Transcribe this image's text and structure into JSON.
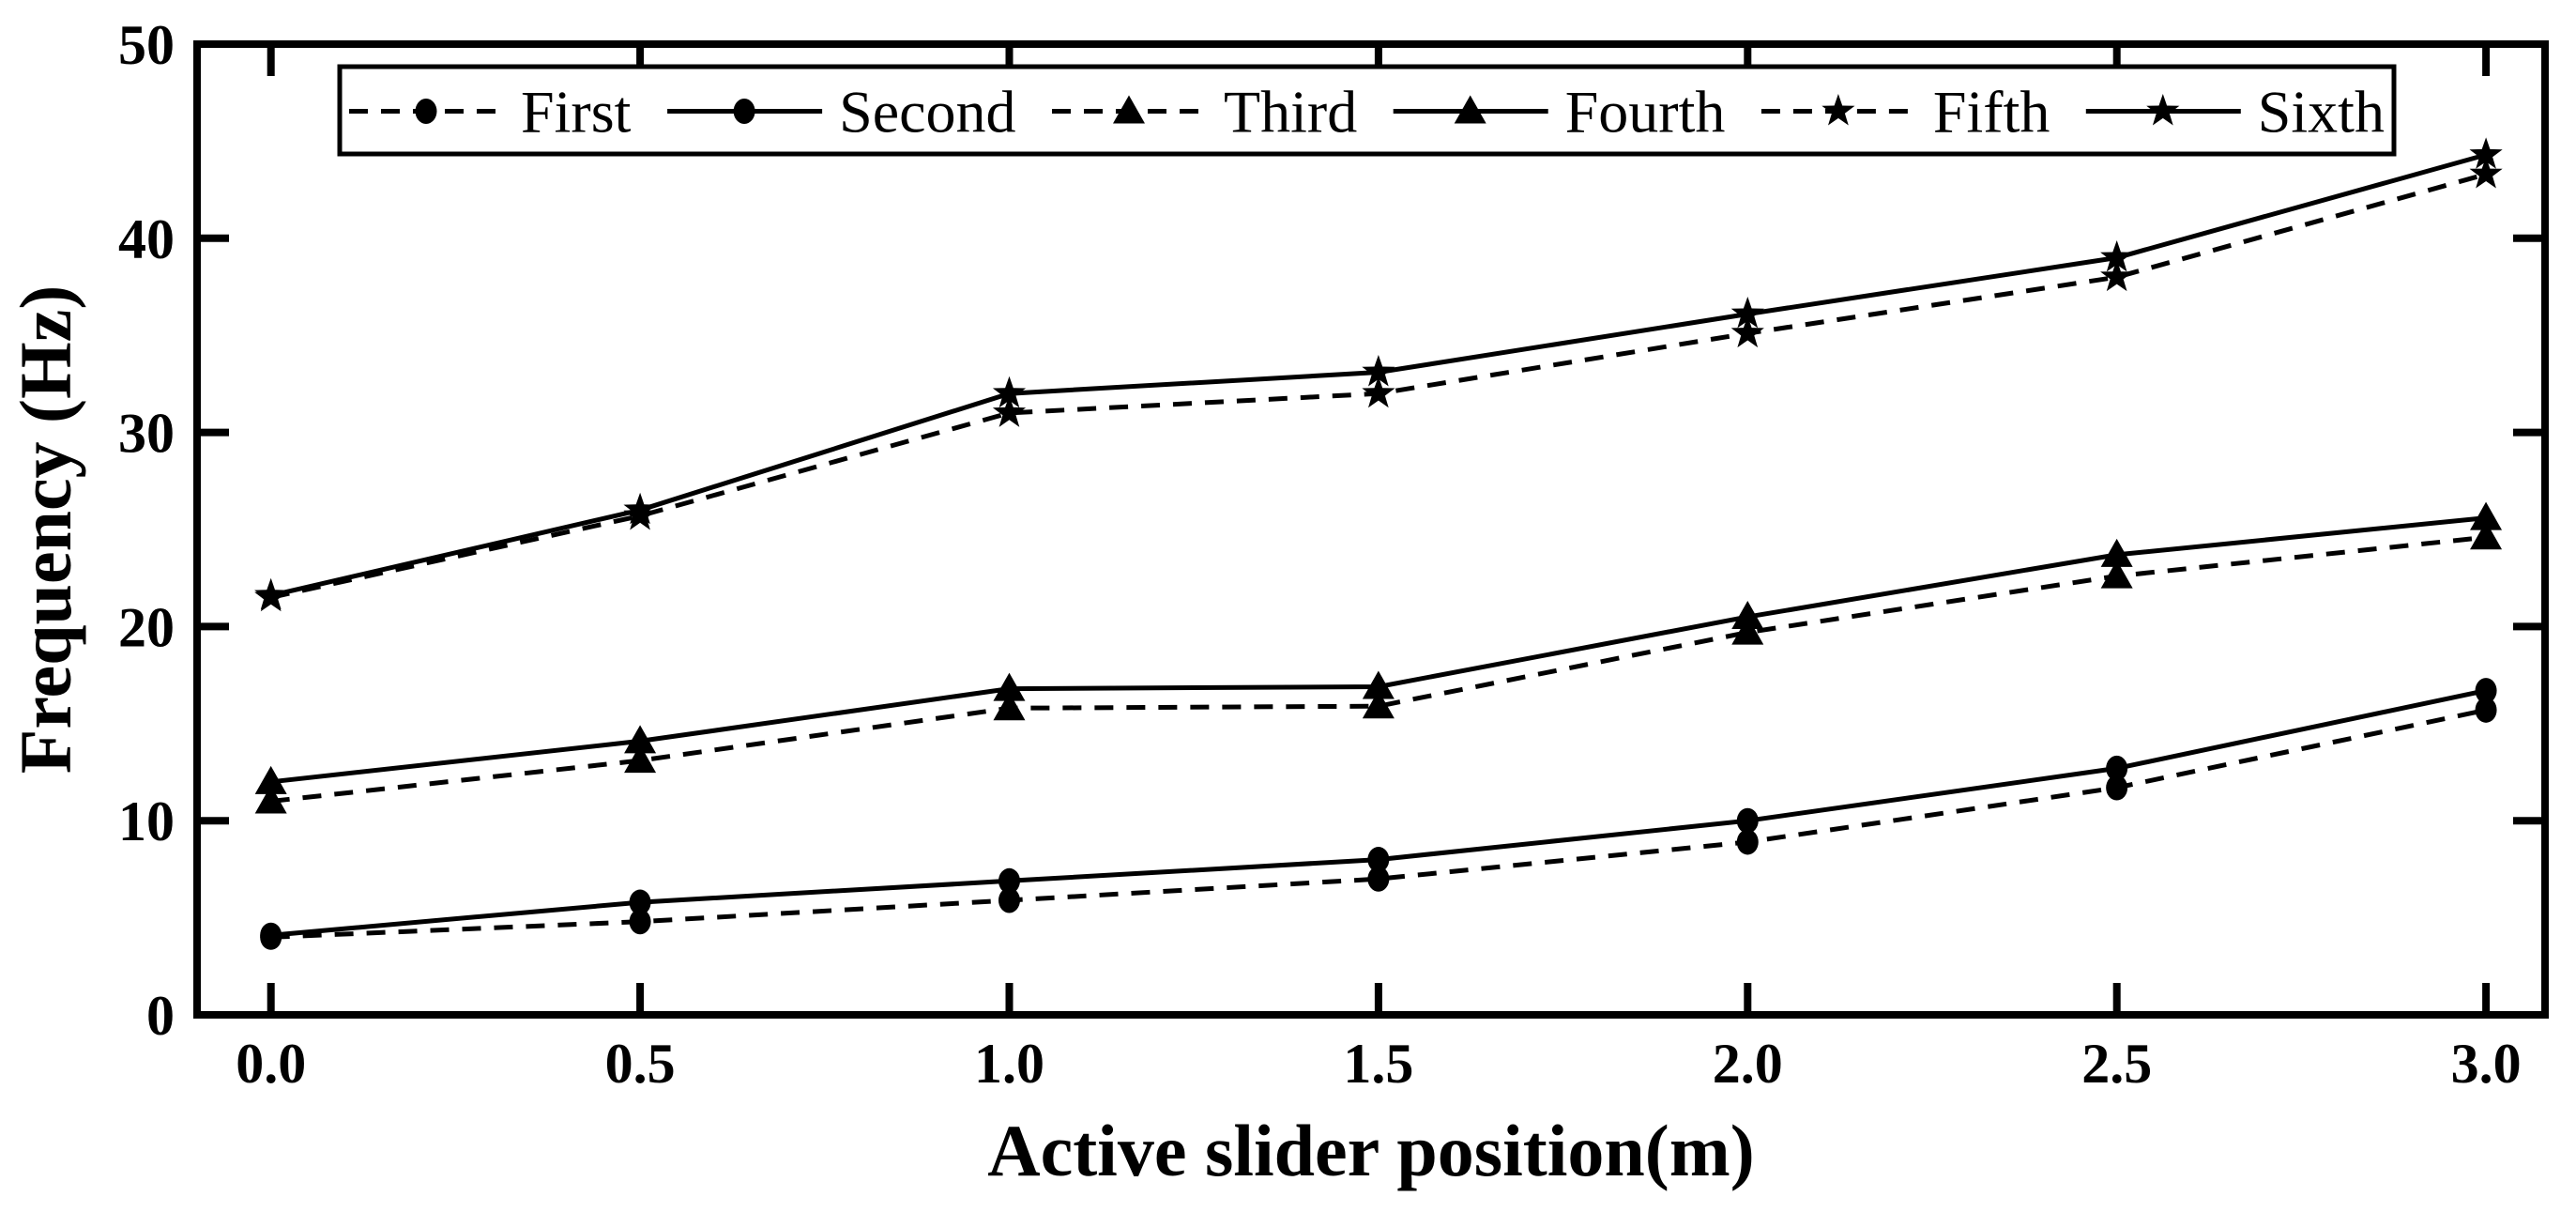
{
  "figure": {
    "background": "#ffffff",
    "foreground": "#000000"
  },
  "chart_data": {
    "type": "line",
    "title": "",
    "xlabel": "Active slider position(m)",
    "ylabel": "Frequency (Hz)",
    "x": [
      0.0,
      0.5,
      1.0,
      1.5,
      2.0,
      2.5,
      3.0
    ],
    "x_tick_labels": [
      "0.0",
      "0.5",
      "1.0",
      "1.5",
      "2.0",
      "2.5",
      "3.0"
    ],
    "y_ticks": [
      0,
      10,
      20,
      30,
      40,
      50
    ],
    "xlim": [
      -0.1,
      3.08
    ],
    "ylim": [
      0,
      50
    ],
    "grid": false,
    "legend": {
      "position": "top-center-inside",
      "border": true
    },
    "series": [
      {
        "name": "First",
        "marker": "circle",
        "line_style": "dashed",
        "color": "#000000",
        "values": [
          4.0,
          4.8,
          5.9,
          7.0,
          8.9,
          11.7,
          15.7
        ]
      },
      {
        "name": "Second",
        "marker": "circle",
        "line_style": "solid",
        "color": "#000000",
        "values": [
          4.1,
          5.8,
          6.9,
          8.0,
          10.0,
          12.7,
          16.7
        ]
      },
      {
        "name": "Third",
        "marker": "triangle",
        "line_style": "dashed",
        "color": "#000000",
        "values": [
          11.0,
          13.1,
          15.8,
          15.9,
          19.7,
          22.6,
          24.6
        ]
      },
      {
        "name": "Fourth",
        "marker": "triangle",
        "line_style": "solid",
        "color": "#000000",
        "values": [
          12.0,
          14.1,
          16.8,
          16.9,
          20.5,
          23.7,
          25.6
        ]
      },
      {
        "name": "Fifth",
        "marker": "star",
        "line_style": "dashed",
        "color": "#000000",
        "values": [
          21.5,
          25.7,
          31.0,
          32.0,
          35.1,
          38.0,
          43.3
        ]
      },
      {
        "name": "Sixth",
        "marker": "star",
        "line_style": "solid",
        "color": "#000000",
        "values": [
          21.6,
          26.0,
          32.0,
          33.1,
          36.1,
          39.0,
          44.3
        ]
      }
    ]
  }
}
